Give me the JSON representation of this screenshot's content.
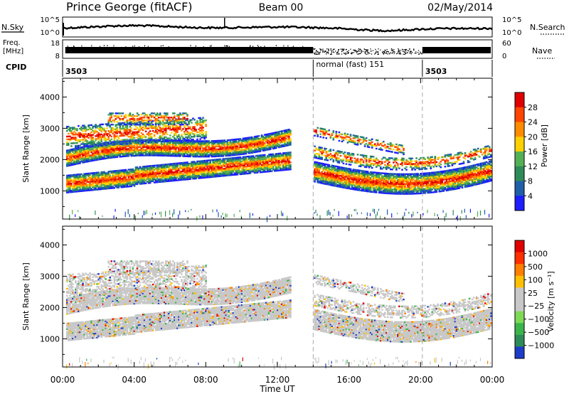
{
  "header": {
    "title": "Prince George (fitACF)",
    "beam": "Beam 00",
    "date": "02/May/2014"
  },
  "sky_panel": {
    "label": "N.Sky",
    "left_ticks": [
      "10^5",
      "10^0"
    ],
    "right_ticks": [
      "10^5",
      "10^0"
    ],
    "right_label": "N.Search",
    "right_label_style": "dotted"
  },
  "freq_panel": {
    "label_line1": "Freq.",
    "label_line2": "[MHz]",
    "left_ticks": [
      "18",
      "8"
    ],
    "right_ticks": [
      "60",
      "0"
    ],
    "right_label": "Nave",
    "right_label_style": "dotted"
  },
  "cpid_panel": {
    "label": "CPID",
    "segments": [
      {
        "label": "3503",
        "start_hour": 0
      },
      {
        "label": "normal (fast) 151",
        "start_hour": 14
      },
      {
        "label": "3503",
        "start_hour": 20.1
      }
    ]
  },
  "time_axis": {
    "label": "Time UT",
    "ticks": [
      "00:00",
      "04:00",
      "08:00",
      "12:00",
      "16:00",
      "20:00",
      "00:00"
    ]
  },
  "chart_data": [
    {
      "type": "heatmap",
      "name": "power",
      "xlim": [
        0,
        24
      ],
      "ylim": [
        100,
        4600
      ],
      "ylabel": "Slant Range [km]",
      "yticks": [
        1000,
        2000,
        3000,
        4000
      ],
      "vertical_markers_hours": [
        14,
        20.1
      ],
      "colorbar": {
        "label": "Power [dB]",
        "ticks": [
          "4",
          "8",
          "12",
          "16",
          "20",
          "24",
          "28"
        ],
        "colors": [
          "#1e1eff",
          "#1f5fa8",
          "#2e8b57",
          "#55b055",
          "#ffd000",
          "#ff8c00",
          "#ff4500",
          "#e00000"
        ]
      }
    },
    {
      "type": "heatmap",
      "name": "velocity",
      "xlim": [
        0,
        24
      ],
      "ylim": [
        100,
        4600
      ],
      "ylabel": "Slant Range [km]",
      "yticks": [
        1000,
        2000,
        3000,
        4000
      ],
      "vertical_markers_hours": [
        14,
        20.1
      ],
      "colorbar": {
        "label": "Velocity [m s⁻¹]",
        "ticks": [
          "1000",
          "500",
          "100",
          "25",
          "−25",
          "−100",
          "−500",
          "−1000"
        ],
        "colors": [
          "#1e3cc8",
          "#2e8b57",
          "#3cb44b",
          "#7ed957",
          "#c8c8c8",
          "#c8c8c8",
          "#ffc000",
          "#ff8000",
          "#ff3000",
          "#e00000"
        ]
      }
    }
  ]
}
